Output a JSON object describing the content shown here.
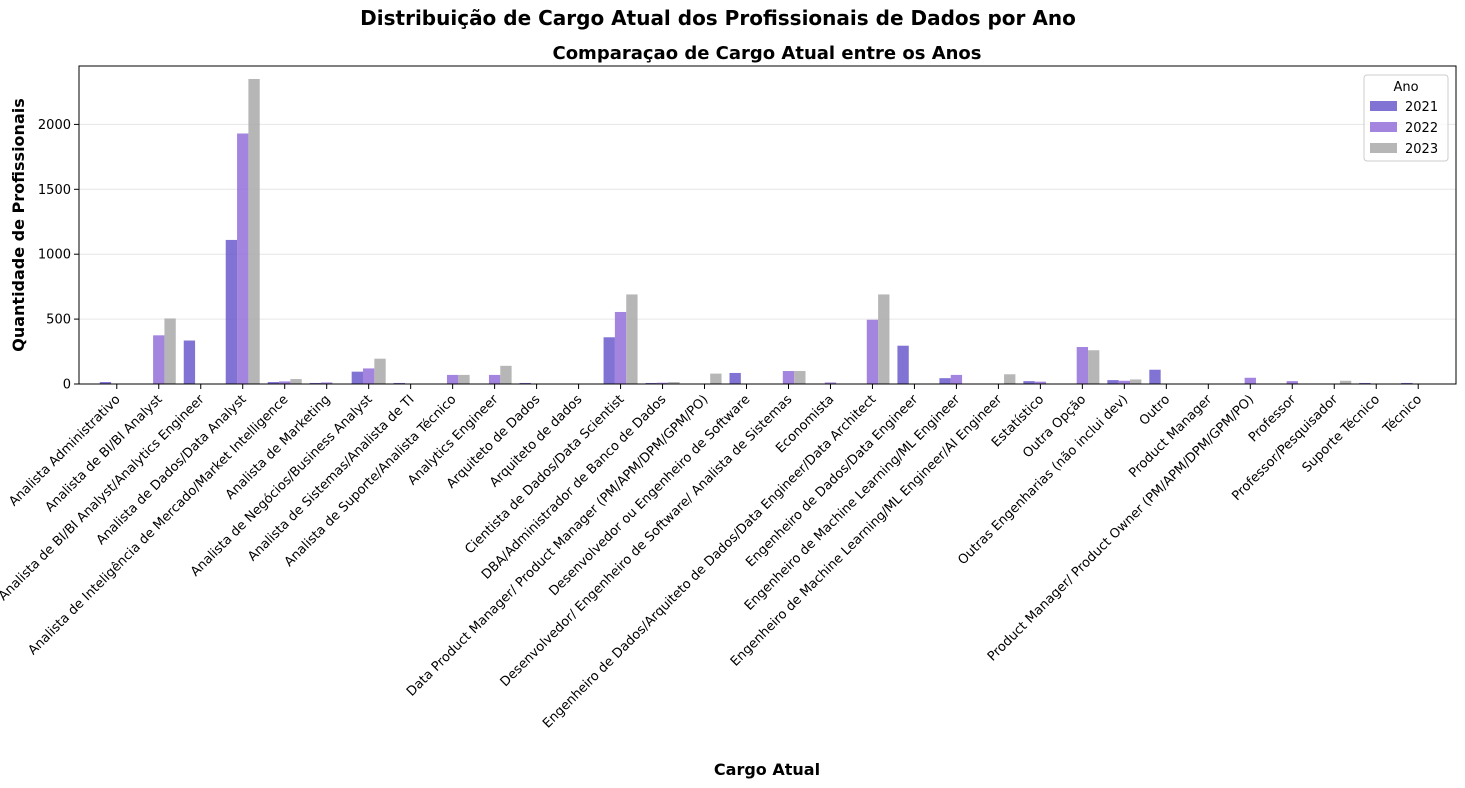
{
  "chart_data": {
    "type": "bar",
    "suptitle": "Distribuição de Cargo Atual dos Profissionais de Dados por Ano",
    "title": "Comparaçao de Cargo Atual entre os Anos",
    "xlabel": "Cargo Atual",
    "ylabel": "Quantidade de Profissionais",
    "ylim": [
      0,
      2450
    ],
    "yticks": [
      0,
      500,
      1000,
      1500,
      2000
    ],
    "grid": "y",
    "legend": {
      "title": "Ano",
      "placement": "top-right"
    },
    "categories": [
      "Analista Administrativo",
      "Analista de BI/BI Analyst",
      "Analista de BI/BI Analyst/Analytics Engineer",
      "Analista de Dados/Data Analyst",
      "Analista de Inteligência de Mercado/Market Intelligence",
      "Analista de Marketing",
      "Analista de Negócios/Business Analyst",
      "Analista de Sistemas/Analista de TI",
      "Analista de Suporte/Analista Técnico",
      "Analytics Engineer",
      "Arquiteto de Dados",
      "Arquiteto de dados",
      "Cientista de Dados/Data Scientist",
      "DBA/Administrador de Banco de Dados",
      "Data Product Manager/ Product Manager (PM/APM/DPM/GPM/PO)",
      "Desenvolvedor ou Engenheiro de Software",
      "Desenvolvedor/ Engenheiro de Software/ Analista de Sistemas",
      "Economista",
      "Engenheiro de Dados/Arquiteto de Dados/Data Engineer/Data Architect",
      "Engenheiro de Dados/Data Engineer",
      "Engenheiro de Machine Learning/ML Engineer",
      "Engenheiro de Machine Learning/ML Engineer/AI Engineer",
      "Estatístico",
      "Outra Opção",
      "Outras Engenharias (não inclui dev)",
      "Outro",
      "Product Manager",
      "Product Manager/ Product Owner (PM/APM/DPM/GPM/PO)",
      "Professor",
      "Professor/Pesquisador",
      "Suporte Técnico",
      "Técnico"
    ],
    "series": [
      {
        "name": "2021",
        "color": "#6a5acd",
        "values": [
          15,
          0,
          335,
          1110,
          15,
          8,
          95,
          8,
          0,
          0,
          8,
          0,
          360,
          8,
          0,
          85,
          0,
          0,
          0,
          295,
          45,
          0,
          22,
          0,
          30,
          110,
          0,
          0,
          0,
          0,
          8,
          8
        ]
      },
      {
        "name": "2022",
        "color": "#9370db",
        "values": [
          0,
          375,
          0,
          1930,
          20,
          12,
          120,
          0,
          70,
          70,
          0,
          0,
          555,
          10,
          0,
          0,
          100,
          12,
          495,
          0,
          70,
          0,
          18,
          285,
          25,
          0,
          0,
          48,
          22,
          0,
          0,
          0
        ]
      },
      {
        "name": "2023",
        "color": "#a9a9a9",
        "values": [
          0,
          505,
          0,
          2350,
          38,
          0,
          195,
          0,
          70,
          140,
          0,
          0,
          690,
          15,
          80,
          0,
          100,
          0,
          690,
          0,
          0,
          75,
          0,
          260,
          35,
          0,
          0,
          0,
          0,
          25,
          0,
          0
        ]
      }
    ]
  }
}
